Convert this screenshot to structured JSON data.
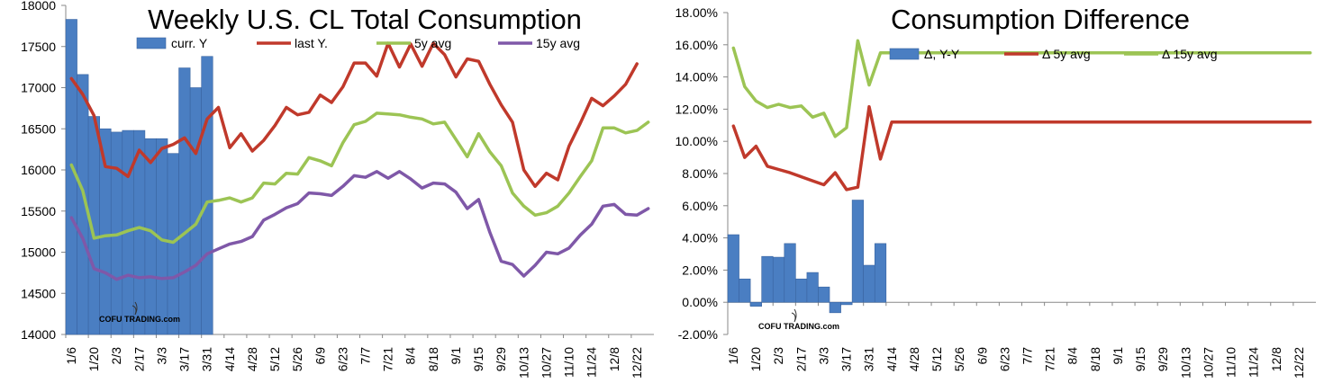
{
  "watermark": "COFU TRADING.com",
  "colors": {
    "bar": "#4a7ec2",
    "bar_stroke": "#3a64a0",
    "last": "#c0392b",
    "avg5": "#9cc454",
    "avg15": "#7f58a8",
    "axis": "#888888"
  },
  "chart_data": [
    {
      "type": "bar",
      "title": "Weekly U.S. CL Total Consumption",
      "ylim": [
        14000,
        18000
      ],
      "yticks": [
        "18000",
        "17500",
        "17000",
        "16500",
        "16000",
        "15500",
        "15000",
        "14500",
        "14000"
      ],
      "yvals": [
        18000,
        17500,
        17000,
        16500,
        16000,
        15500,
        15000,
        14500,
        14000
      ],
      "xticks": [
        "1/6",
        "1/20",
        "2/3",
        "2/17",
        "3/3",
        "3/17",
        "3/31",
        "4/14",
        "4/28",
        "5/12",
        "5/26",
        "6/9",
        "6/23",
        "7/7",
        "7/21",
        "8/4",
        "8/18",
        "9/1",
        "9/15",
        "9/29",
        "10/13",
        "10/27",
        "11/10",
        "11/24",
        "12/8",
        "12/22"
      ],
      "series": [
        {
          "name": "curr. Y",
          "kind": "bar",
          "values": [
            17830,
            17160,
            16650,
            16500,
            16460,
            16480,
            16480,
            16380,
            16380,
            16200,
            17240,
            17000,
            17380
          ]
        },
        {
          "name": "last Y.",
          "kind": "line",
          "values": [
            17110,
            16920,
            16660,
            16040,
            16020,
            15920,
            16240,
            16090,
            16260,
            16310,
            16390,
            16200,
            16620,
            16760,
            16270,
            16440,
            16230,
            16360,
            16540,
            16760,
            16670,
            16700,
            16910,
            16820,
            17010,
            17300,
            17300,
            17140,
            17540,
            17250,
            17530,
            17260,
            17540,
            17400,
            17130,
            17350,
            17320,
            17040,
            16790,
            16580,
            16000,
            15800,
            15960,
            15880,
            16290,
            16570,
            16870,
            16780,
            16900,
            17040,
            17290
          ]
        },
        {
          "name": "5y avg",
          "kind": "line",
          "values": [
            16060,
            15750,
            15170,
            15200,
            15210,
            15260,
            15300,
            15260,
            15150,
            15120,
            15230,
            15340,
            15610,
            15630,
            15660,
            15610,
            15660,
            15840,
            15830,
            15960,
            15950,
            16150,
            16110,
            16050,
            16330,
            16550,
            16590,
            16690,
            16680,
            16670,
            16640,
            16620,
            16560,
            16580,
            16370,
            16160,
            16440,
            16220,
            16050,
            15720,
            15560,
            15450,
            15480,
            15560,
            15720,
            15920,
            16110,
            16510,
            16510,
            16450,
            16480,
            16580
          ]
        },
        {
          "name": "15y avg",
          "kind": "line",
          "values": [
            15420,
            15170,
            14800,
            14750,
            14670,
            14720,
            14690,
            14700,
            14680,
            14690,
            14760,
            14840,
            14980,
            15040,
            15100,
            15130,
            15190,
            15390,
            15460,
            15540,
            15590,
            15720,
            15710,
            15690,
            15800,
            15930,
            15910,
            15980,
            15900,
            15980,
            15890,
            15780,
            15840,
            15830,
            15730,
            15530,
            15640,
            15240,
            14890,
            14850,
            14710,
            14840,
            15000,
            14980,
            15050,
            15210,
            15340,
            15560,
            15580,
            15460,
            15450,
            15530
          ]
        }
      ]
    },
    {
      "type": "bar",
      "title": "Consumption Difference",
      "ylim": [
        -2,
        18
      ],
      "yticks": [
        "18.00%",
        "16.00%",
        "14.00%",
        "12.00%",
        "10.00%",
        "8.00%",
        "6.00%",
        "4.00%",
        "2.00%",
        "0.00%",
        "-2.00%"
      ],
      "yvals": [
        18,
        16,
        14,
        12,
        10,
        8,
        6,
        4,
        2,
        0,
        -2
      ],
      "xticks": [
        "1/6",
        "1/20",
        "2/3",
        "2/17",
        "3/3",
        "3/17",
        "3/31",
        "4/14",
        "4/28",
        "5/12",
        "5/26",
        "6/9",
        "6/23",
        "7/7",
        "7/21",
        "8/4",
        "8/18",
        "9/1",
        "9/15",
        "9/29",
        "10/13",
        "10/27",
        "11/10",
        "11/24",
        "12/8",
        "12/22"
      ],
      "series": [
        {
          "name": "Δ, Y-Y",
          "kind": "bar",
          "values": [
            4.2,
            1.45,
            -0.25,
            2.85,
            2.8,
            3.65,
            1.45,
            1.85,
            0.95,
            -0.65,
            -0.15,
            6.35,
            2.3,
            3.65
          ]
        },
        {
          "name": "Δ 5y avg",
          "kind": "line",
          "values": [
            10.95,
            9.0,
            9.7,
            8.45,
            8.25,
            8.05,
            7.8,
            7.55,
            7.3,
            8.05,
            7.0,
            7.15,
            12.15,
            8.9,
            11.2,
            11.2,
            11.2,
            11.2,
            11.2,
            11.2,
            11.2,
            11.2,
            11.2,
            11.2,
            11.2,
            11.2,
            11.2,
            11.2,
            11.2,
            11.2,
            11.2,
            11.2,
            11.2,
            11.2,
            11.2,
            11.2,
            11.2,
            11.2,
            11.2,
            11.2,
            11.2,
            11.2,
            11.2,
            11.2,
            11.2,
            11.2,
            11.2,
            11.2,
            11.2,
            11.2,
            11.2,
            11.2
          ]
        },
        {
          "name": "Δ 15y avg",
          "kind": "line",
          "values": [
            15.8,
            13.4,
            12.5,
            12.1,
            12.3,
            12.1,
            12.2,
            11.5,
            11.75,
            10.3,
            10.85,
            16.25,
            13.5,
            15.5,
            15.5,
            15.5,
            15.5,
            15.5,
            15.5,
            15.5,
            15.5,
            15.5,
            15.5,
            15.5,
            15.5,
            15.5,
            15.5,
            15.5,
            15.5,
            15.5,
            15.5,
            15.5,
            15.5,
            15.5,
            15.5,
            15.5,
            15.5,
            15.5,
            15.5,
            15.5,
            15.5,
            15.5,
            15.5,
            15.5,
            15.5,
            15.5,
            15.5,
            15.5,
            15.5,
            15.5,
            15.5,
            15.5
          ]
        }
      ]
    }
  ]
}
